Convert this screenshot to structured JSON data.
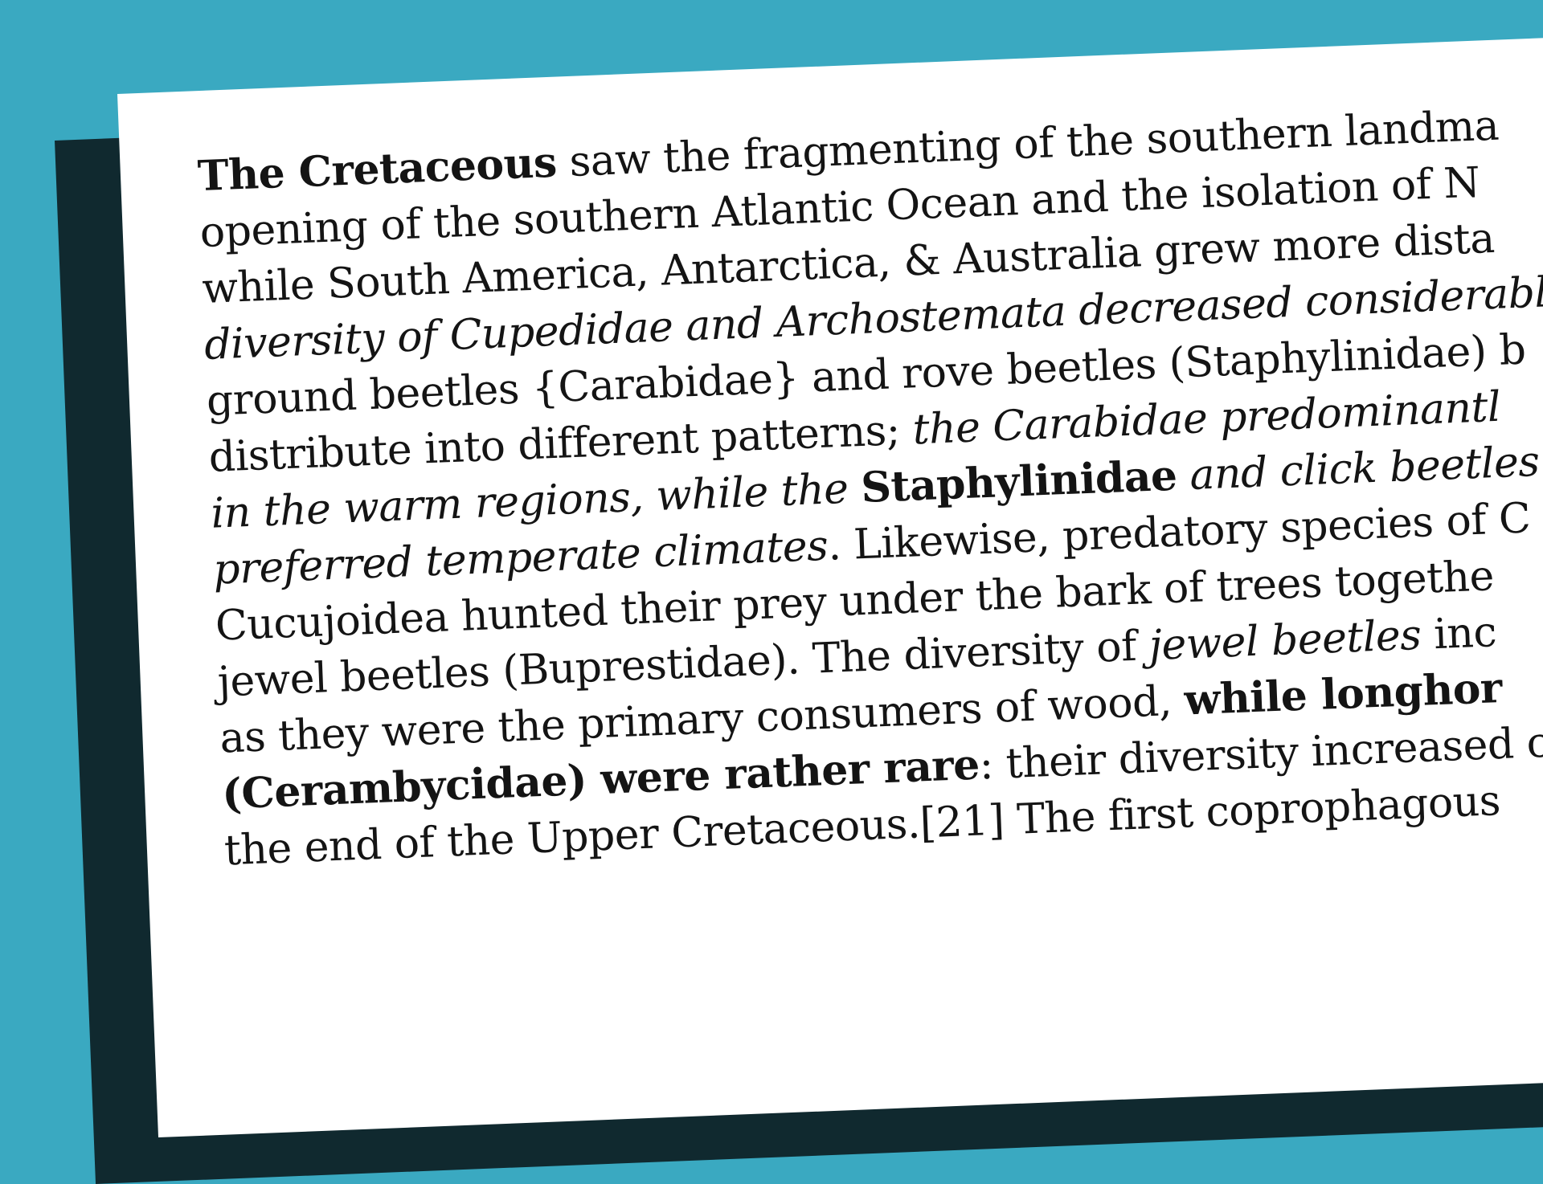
{
  "lines": [
    [
      "The Cretaceous",
      "saw the fragmenting of the southern landma"
    ],
    [
      "opening of the southern Atlantic Ocean and the isolation of N"
    ],
    [
      "while South America, Antarctica, & Australia grew more dista"
    ],
    [
      "diversity of Cupedidae and Archostemata decreased considerabl"
    ],
    [
      "ground beetles {Carabidae} and rove beetles (Staphylinidae) b"
    ],
    [
      "distribute into different patterns;",
      "the Carabidae predominantl"
    ],
    [
      "in the warm regions, while the",
      "Staphylinidae",
      "and click beetles",
      "("
    ],
    [
      "preferred temperate climates",
      ". Likewise, predatory species of C"
    ],
    [
      "Cucujoidea hunted their prey under the bark of trees togethe"
    ],
    [
      "jewel beetles (Buprestidae). The diversity of",
      "jewel beetles",
      "inc"
    ],
    [
      "as they were the primary consumers of wood,",
      "while longhor"
    ],
    [
      "(Cerambycidae) were rather rare",
      ": their diversity increased c"
    ],
    [
      "the end of the Upper Cretaceous.[21] The first coprophagous"
    ]
  ]
}
